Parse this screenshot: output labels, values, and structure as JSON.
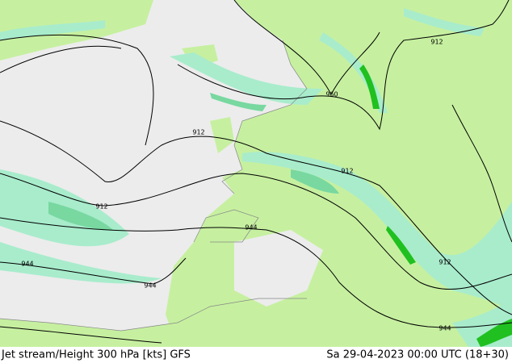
{
  "map": {
    "contour_labels": [
      "912",
      "960",
      "912",
      "912",
      "912",
      "944",
      "944",
      "944",
      "912",
      "944"
    ]
  },
  "footer": {
    "title": "Jet stream/Height 300 hPa [kts] GFS",
    "timestamp": "Sa 29-04-2023 00:00 UTC (18+30)"
  }
}
